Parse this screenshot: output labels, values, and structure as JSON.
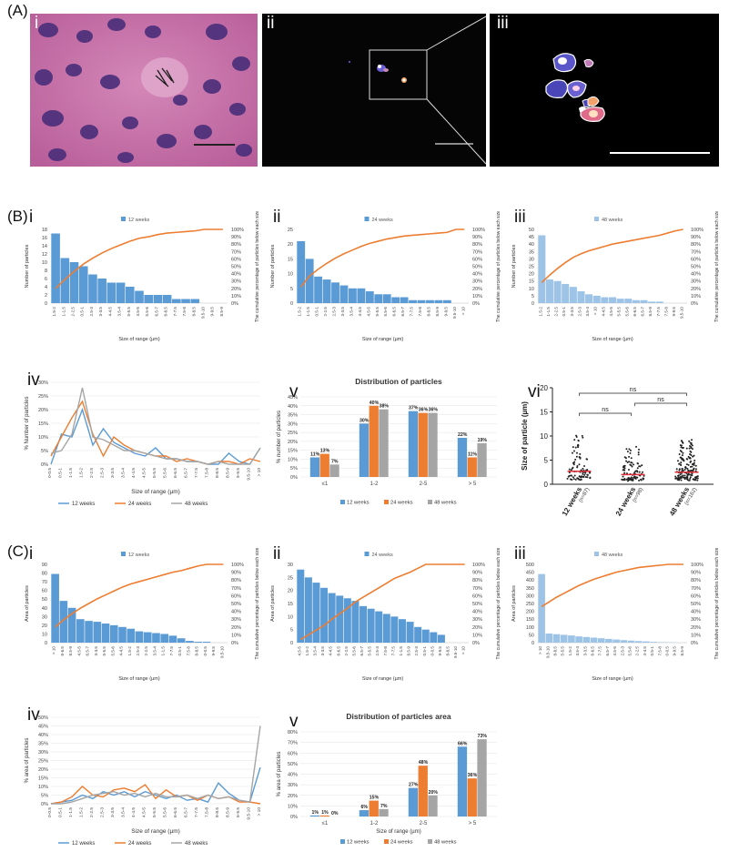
{
  "figure": {
    "section_a_label": "(A)",
    "section_b_label": "(B)",
    "section_c_label": "(C)",
    "numerals": {
      "i": "i",
      "ii": "ii",
      "iii": "iii",
      "iv": "iv",
      "v": "v",
      "vi": "vi"
    }
  },
  "colors": {
    "blue": "#5b9bd5",
    "light_blue": "#9dc3e6",
    "orange": "#ed7d31",
    "gray": "#a5a5a5",
    "he_stain": "#c76fa8"
  },
  "chart_data": [
    {
      "id": "B-i",
      "type": "bar",
      "legend": "12 weeks",
      "categories": [
        "1.5-2",
        "1-1.5",
        "2-2.5",
        "0.5-1",
        "2.5-3",
        "3-3.5",
        "4-4.5",
        "3.5-4",
        "5-5.5",
        "4.5-5",
        "5.5-6",
        "6.5-7",
        "6-6.5",
        "7-7.5",
        "7.5-8",
        "8-8.5",
        "9.5-10",
        "9-9.5",
        "8.5-9"
      ],
      "values": [
        17,
        11,
        10,
        9,
        7,
        6,
        5,
        5,
        4,
        3,
        2,
        2,
        2,
        1,
        1,
        1,
        0,
        0,
        0
      ],
      "cumulative": [
        20,
        32,
        43,
        53,
        61,
        68,
        74,
        79,
        84,
        88,
        90,
        93,
        95,
        96,
        97,
        98,
        100,
        100,
        100
      ],
      "ylabel": "Number of particles",
      "y2label": "The cumulative percentage of particles below each size",
      "xlabel": "Size of range (µm)",
      "yticks": [
        0,
        2,
        4,
        6,
        8,
        10,
        12,
        14,
        16,
        18
      ],
      "ylim": [
        0,
        18
      ],
      "y2ticks": [
        "0%",
        "10%",
        "20%",
        "30%",
        "40%",
        "50%",
        "60%",
        "70%",
        "80%",
        "90%",
        "100%"
      ]
    },
    {
      "id": "B-ii",
      "type": "bar",
      "legend": "24 weeks",
      "categories": [
        "1.5-2",
        "1-1.5",
        "0.5-1",
        "2-2.5",
        "2.5-3",
        "3-3.5",
        "3.5-4",
        "4-4.5",
        "4.5-5",
        "5-5.5",
        "5.5-6",
        "6-6.5",
        "6.5-7",
        "7-7.5",
        "7.5-8",
        "8-8.5",
        "8.5-9",
        "9-9.5",
        "9.5-10",
        "> 10"
      ],
      "values": [
        21,
        15,
        9,
        8,
        7,
        6,
        5,
        5,
        4,
        3,
        3,
        2,
        2,
        1,
        1,
        1,
        1,
        1,
        0,
        0
      ],
      "cumulative": [
        22,
        37,
        46,
        54,
        61,
        67,
        72,
        77,
        81,
        84,
        87,
        89,
        91,
        92,
        93,
        94,
        95,
        96,
        100,
        100
      ],
      "ylabel": "Number of particles",
      "y2label": "The cumulative percentage of particles below each size",
      "xlabel": "Size of range (µm)",
      "yticks": [
        0,
        5,
        10,
        15,
        20,
        25
      ],
      "ylim": [
        0,
        25
      ],
      "y2ticks": [
        "0%",
        "10%",
        "20%",
        "30%",
        "40%",
        "50%",
        "60%",
        "70%",
        "80%",
        "90%",
        "100%"
      ]
    },
    {
      "id": "B-iii",
      "type": "bar",
      "legend": "48 weeks",
      "categories": [
        "1.5-2",
        "1-1.5",
        "2-2.5",
        "0.5-1",
        "3-3.5",
        "2.5-3",
        "3.5-4",
        "> 10",
        "4-4.5",
        "4.5-5",
        "5-5.5",
        "5.5-6",
        "6-6.5",
        "6.5-7",
        "8.5-9",
        "7-7.5",
        "7.5-8",
        "9-9.5",
        "9.5-10"
      ],
      "values": [
        46,
        16,
        15,
        13,
        11,
        8,
        6,
        5,
        4,
        4,
        3,
        3,
        2,
        2,
        1,
        1,
        0,
        0,
        0
      ],
      "cumulative": [
        28,
        38,
        47,
        55,
        62,
        67,
        71,
        74,
        77,
        80,
        82,
        84,
        86,
        88,
        90,
        92,
        95,
        98,
        100
      ],
      "ylabel": "Number of particles",
      "y2label": "The cumulative percentage of particles below each size",
      "xlabel": "Size of range (µm)",
      "yticks": [
        0,
        5,
        10,
        15,
        20,
        25,
        30,
        35,
        40,
        45,
        50
      ],
      "ylim": [
        0,
        50
      ],
      "y2ticks": [
        "0%",
        "10%",
        "20%",
        "30%",
        "40%",
        "50%",
        "60%",
        "70%",
        "80%",
        "90%",
        "100%"
      ]
    },
    {
      "id": "B-iv",
      "type": "line",
      "categories": [
        "0-0.5",
        "0.5-1",
        "1-1.5",
        "1.5-2",
        "2-2.5",
        "2.5-3",
        "3-3.5",
        "3.5-4",
        "4-4.5",
        "4.5-5",
        "5-5.5",
        "5.5-6",
        "6-6.5",
        "6.5-7",
        "7-7.5",
        "7.5-8",
        "8-8.5",
        "8.5-9",
        "9-9.5",
        "9.5-10",
        "> 10"
      ],
      "series": [
        {
          "name": "12 weeks",
          "values": [
            0,
            11,
            10,
            20,
            7,
            13,
            8,
            6,
            4,
            3,
            6,
            2,
            2,
            1,
            1,
            0,
            0,
            4,
            1,
            0,
            6
          ]
        },
        {
          "name": "24 weeks",
          "values": [
            3,
            10,
            17,
            23,
            11,
            3,
            10,
            7,
            5,
            4,
            3,
            3,
            1,
            2,
            1,
            0,
            1,
            1,
            0,
            2,
            1
          ]
        },
        {
          "name": "48 weeks",
          "values": [
            4,
            5,
            11,
            28,
            10,
            9,
            7,
            5,
            5,
            4,
            3,
            2,
            2,
            1,
            1,
            0,
            1,
            0,
            0,
            0,
            6
          ]
        }
      ],
      "ylabel": "% Number of particles",
      "xlabel": "Size of range (µm)",
      "yticks": [
        "0%",
        "5%",
        "10%",
        "15%",
        "20%",
        "25%",
        "30%"
      ],
      "ylim": [
        0,
        30
      ]
    },
    {
      "id": "B-v",
      "type": "bar",
      "title": "Distribution of particles",
      "categories": [
        "≤1",
        "1-2",
        "2-5",
        "> 5"
      ],
      "series": [
        {
          "name": "12 weeks",
          "values": [
            11,
            30,
            37,
            22
          ],
          "labels": [
            "11%",
            "30%",
            "37%",
            "22%"
          ]
        },
        {
          "name": "24 weeks",
          "values": [
            13,
            40,
            36,
            11
          ],
          "labels": [
            "13%",
            "40%",
            "36%",
            "11%"
          ]
        },
        {
          "name": "48 weeks",
          "values": [
            7,
            38,
            36,
            19
          ],
          "labels": [
            "7%",
            "38%",
            "36%",
            "19%"
          ]
        }
      ],
      "ylabel": "% number of particles",
      "yticks": [
        "0%",
        "5%",
        "10%",
        "15%",
        "20%",
        "25%",
        "30%",
        "35%",
        "40%",
        "45%"
      ],
      "ylim": [
        0,
        45
      ]
    },
    {
      "id": "B-vi",
      "type": "scatter",
      "categories": [
        "12 weeks",
        "24 weeks",
        "48 weeks"
      ],
      "n_labels": [
        "(n=87)",
        "(n=98)",
        "(n=162)"
      ],
      "medians": [
        2.7,
        2.0,
        2.5
      ],
      "ylabel": "Size of particle (µm)",
      "yticks": [
        0,
        5,
        10,
        15,
        20
      ],
      "ylim": [
        0,
        20
      ],
      "significance": [
        "ns",
        "ns",
        "ns"
      ]
    },
    {
      "id": "C-i",
      "type": "bar",
      "legend": "12 weeks",
      "categories": [
        "> 10",
        "6-6.5",
        "8.5-9",
        "4.5-5",
        "6.5-7",
        "3-3.5",
        "5-5.5",
        "5.5-6",
        "4-4.5",
        "1.5-2",
        "2.5-3",
        "2-2.5",
        "3.5-4",
        "1-1.5",
        "7-7.5",
        "0.5-1",
        "7.5-8",
        "8-8.5",
        "0-0.5",
        "9-9.5",
        "9.5-10"
      ],
      "values": [
        79,
        48,
        40,
        27,
        25,
        24,
        22,
        20,
        18,
        16,
        13,
        12,
        11,
        10,
        8,
        5,
        2,
        1,
        1,
        0,
        0
      ],
      "cumulative": [
        20,
        29,
        37,
        44,
        50,
        56,
        61,
        66,
        71,
        75,
        78,
        81,
        84,
        87,
        90,
        92,
        95,
        98,
        100,
        100,
        100
      ],
      "ylabel": "Area of particles",
      "y2label": "The cumulative percentage of particles below each size",
      "xlabel": "Size of range (µm)",
      "yticks": [
        0,
        10,
        20,
        30,
        40,
        50,
        60,
        70,
        80,
        90
      ],
      "ylim": [
        0,
        90
      ],
      "y2ticks": [
        "0%",
        "10%",
        "20%",
        "30%",
        "40%",
        "50%",
        "60%",
        "70%",
        "80%",
        "90%",
        "100%"
      ]
    },
    {
      "id": "C-ii",
      "type": "bar",
      "legend": "24 weeks",
      "categories": [
        "4.5-5",
        "1.5-2",
        "3.5-4",
        "3-3.5",
        "4-4.5",
        "6-6.5",
        "2-2.5",
        "5.5-6",
        "6.5-7",
        "5-5.5",
        "2.5-3",
        "7.5-8",
        "7-7.5",
        "1-1.5",
        "8.5-9",
        "2.5-3",
        "0.5-1",
        "0-0.5",
        "9-9.5",
        "8-8.5",
        "9.5-10",
        "> 10"
      ],
      "values": [
        28,
        25,
        23,
        21,
        19,
        18,
        17,
        16,
        14,
        13,
        12,
        11,
        10,
        9,
        8,
        6,
        5,
        4,
        3,
        0,
        0,
        0
      ],
      "cumulative": [
        4,
        10,
        16,
        22,
        30,
        37,
        44,
        52,
        58,
        64,
        70,
        76,
        82,
        86,
        90,
        95,
        100,
        100,
        100,
        100,
        100,
        100
      ],
      "ylabel": "Area of particles",
      "y2label": "The cumulative percentage of particles below each size",
      "xlabel": "Size of range (µm)",
      "yticks": [
        0,
        5,
        10,
        15,
        20,
        25,
        30
      ],
      "ylim": [
        0,
        30
      ],
      "y2ticks": [
        "0%",
        "10%",
        "20%",
        "30%",
        "40%",
        "50%",
        "60%",
        "70%",
        "80%",
        "90%",
        "100%"
      ]
    },
    {
      "id": "C-iii",
      "type": "bar",
      "legend": "48 weeks",
      "categories": [
        "> 10",
        "9.5-10",
        "8-8.5",
        "5-5.5",
        "1.5-2",
        "3.5-4",
        "3-3.5",
        "6-6.5",
        "7-7.5",
        "6.5-7",
        "4.5-5",
        "2.5-3",
        "5.5-6",
        "2-2.5",
        "4-4.5",
        "0.5-1",
        "7.5-8",
        "0-0.5",
        "9-9.5",
        "8.5-9"
      ],
      "values": [
        438,
        58,
        54,
        50,
        46,
        40,
        36,
        32,
        28,
        24,
        20,
        16,
        13,
        10,
        8,
        5,
        3,
        2,
        1,
        0
      ],
      "cumulative": [
        46,
        52,
        58,
        63,
        68,
        73,
        77,
        81,
        84,
        87,
        90,
        92,
        94,
        96,
        97,
        98,
        99,
        100,
        100,
        100
      ],
      "ylabel": "Area of particles",
      "y2label": "The cumulative percentage of particles below each size",
      "xlabel": "Size of range (µm)",
      "yticks": [
        0,
        50,
        100,
        150,
        200,
        250,
        300,
        350,
        400,
        450,
        500
      ],
      "ylim": [
        0,
        500
      ],
      "y2ticks": [
        "0%",
        "10%",
        "20%",
        "30%",
        "40%",
        "50%",
        "60%",
        "70%",
        "80%",
        "90%",
        "100%"
      ]
    },
    {
      "id": "C-iv",
      "type": "line",
      "categories": [
        "0-0.5",
        "0.5-1",
        "1-1.5",
        "1.5-2",
        "2-2.5",
        "2.5-3",
        "3-3.5",
        "3.5-4",
        "4-4.5",
        "4.5-5",
        "5-5.5",
        "5.5-6",
        "6-6.5",
        "6.5-7",
        "7-7.5",
        "7.5-8",
        "8-8.5",
        "8.5-9",
        "9-9.5",
        "9.5-10",
        "> 10"
      ],
      "series": [
        {
          "name": "12 weeks",
          "values": [
            0,
            1,
            2,
            5,
            3,
            7,
            5,
            7,
            4,
            7,
            5,
            3,
            5,
            2,
            3,
            1,
            12,
            6,
            2,
            1,
            21
          ]
        },
        {
          "name": "24 weeks",
          "values": [
            0,
            1,
            4,
            10,
            5,
            4,
            8,
            9,
            7,
            11,
            3,
            8,
            4,
            5,
            2,
            5,
            3,
            4,
            1,
            1,
            0
          ]
        },
        {
          "name": "48 weeks",
          "values": [
            0,
            0,
            1,
            3,
            5,
            6,
            7,
            5,
            6,
            4,
            6,
            4,
            4,
            5,
            3,
            5,
            3,
            4,
            2,
            1,
            45
          ]
        }
      ],
      "ylabel": "% area of particles",
      "xlabel": "Size of range (µm)",
      "yticks": [
        "0%",
        "5%",
        "10%",
        "15%",
        "20%",
        "25%",
        "30%",
        "35%",
        "40%",
        "45%",
        "50%"
      ],
      "ylim": [
        0,
        50
      ]
    },
    {
      "id": "C-v",
      "type": "bar",
      "title": "Distribution of particles area",
      "categories": [
        "≤1",
        "1-2",
        "2-5",
        "> 5"
      ],
      "series": [
        {
          "name": "12 weeks",
          "values": [
            1,
            6,
            27,
            66
          ],
          "labels": [
            "1%",
            "6%",
            "27%",
            "66%"
          ]
        },
        {
          "name": "24 weeks",
          "values": [
            1,
            15,
            48,
            36
          ],
          "labels": [
            "1%",
            "15%",
            "48%",
            "36%"
          ]
        },
        {
          "name": "48 weeks",
          "values": [
            0,
            7,
            20,
            73
          ],
          "labels": [
            "0%",
            "7%",
            "20%",
            "73%"
          ]
        }
      ],
      "ylabel": "% area of particles",
      "xlabel": "Size of range (µm)",
      "yticks": [
        "0%",
        "10%",
        "20%",
        "30%",
        "40%",
        "50%",
        "60%",
        "70%",
        "80%"
      ],
      "ylim": [
        0,
        80
      ]
    }
  ]
}
